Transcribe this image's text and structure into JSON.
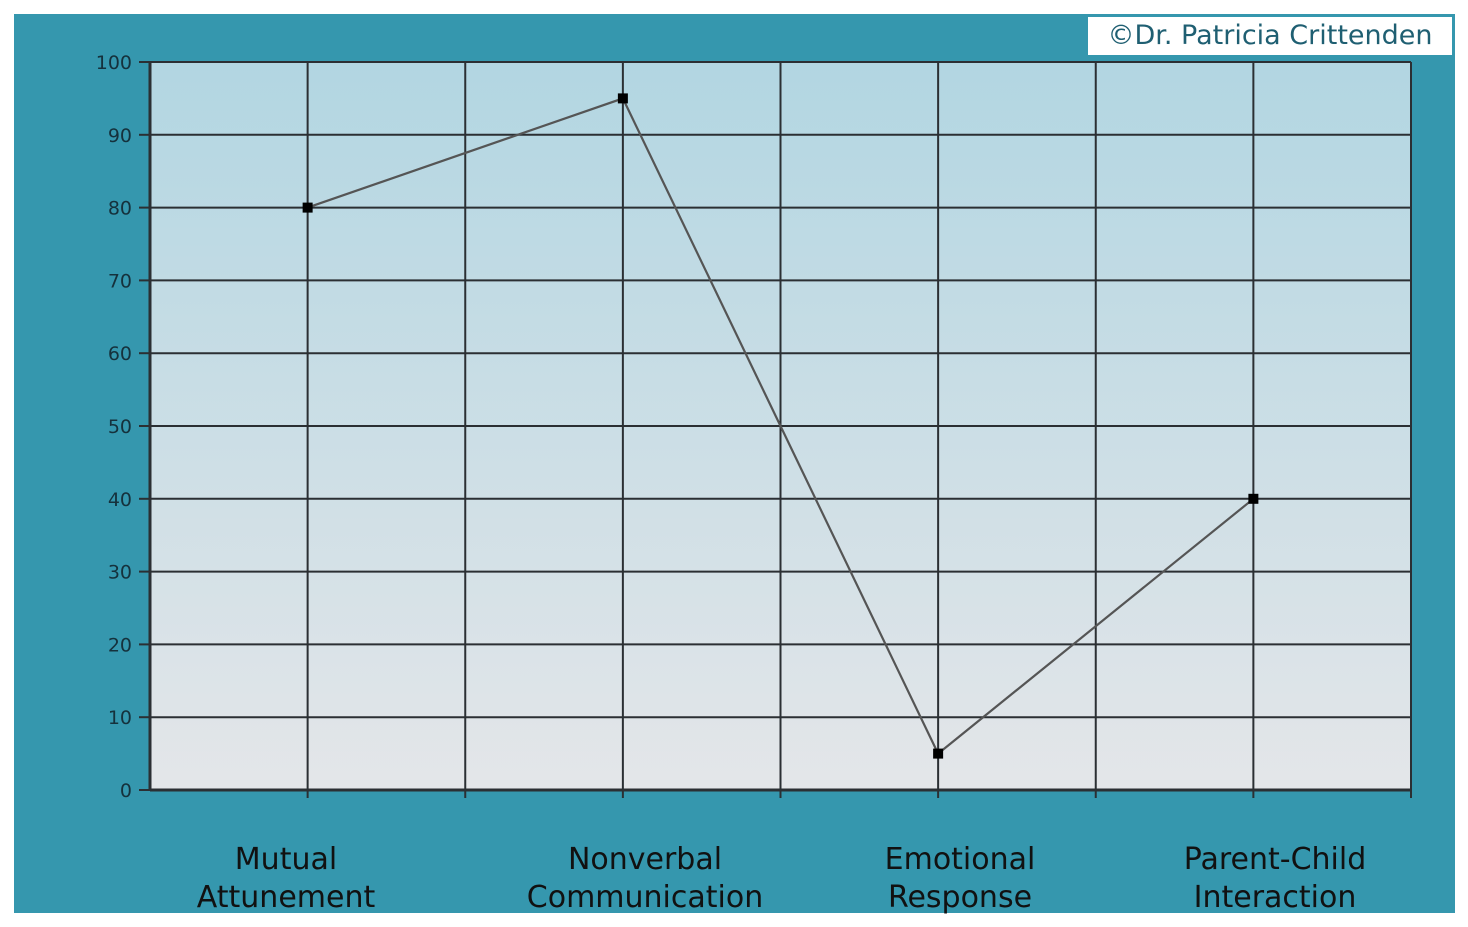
{
  "watermark": "©Dr. Patricia Crittenden",
  "chart_data": {
    "type": "line",
    "title": "",
    "xlabel": "",
    "ylabel": "",
    "ylim": [
      0,
      100
    ],
    "yticks": [
      0,
      10,
      20,
      30,
      40,
      50,
      60,
      70,
      80,
      90,
      100
    ],
    "grid": true,
    "categories": [
      [
        "Mutual",
        "Attunement"
      ],
      [
        "Nonverbal",
        "Communication"
      ],
      [
        "Emotional",
        "Response"
      ],
      [
        "Parent-Child",
        "Interaction"
      ]
    ],
    "x": [
      1,
      3,
      5,
      7
    ],
    "values": [
      80,
      95,
      5,
      40
    ],
    "colors": {
      "frame": "#3597ae",
      "plot_top": "#b2d6e2",
      "plot_bottom": "#e4e6e9",
      "grid": "#2b2f33",
      "line": "#555555",
      "marker": "#000000"
    }
  }
}
